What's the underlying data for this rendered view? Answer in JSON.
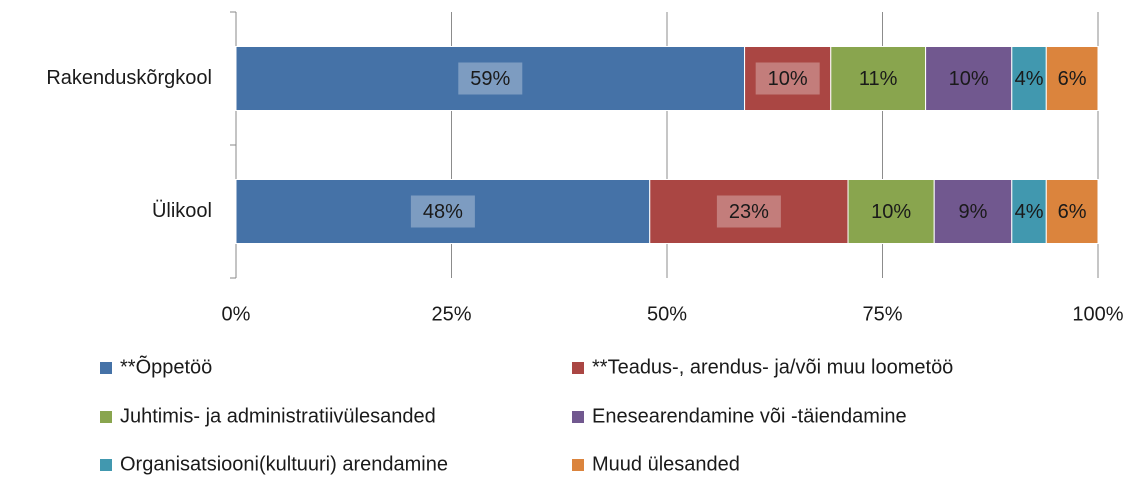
{
  "chart_data": {
    "type": "stacked-bar-horizontal",
    "categories": [
      "Rakenduskõrgkool",
      "Ülikool"
    ],
    "series": [
      {
        "name": "**Õppetöö",
        "color": "#4572a7",
        "values": [
          59,
          48
        ],
        "value_labels": [
          "59%",
          "48%"
        ]
      },
      {
        "name": "**Teadus-, arendus- ja/või muu loometöö",
        "color": "#aa4643",
        "values": [
          10,
          23
        ],
        "value_labels": [
          "10%",
          "23%"
        ]
      },
      {
        "name": "Juhtimis- ja administratiivülesanded",
        "color": "#89a54e",
        "values": [
          11,
          10
        ],
        "value_labels": [
          "11%",
          "10%"
        ]
      },
      {
        "name": "Enesearendamine või -täiendamine",
        "color": "#71588f",
        "values": [
          10,
          9
        ],
        "value_labels": [
          "10%",
          "9%"
        ]
      },
      {
        "name": "Organisatsiooni(kultuuri) arendamine",
        "color": "#4198af",
        "values": [
          4,
          4
        ],
        "value_labels": [
          "4%",
          "4%"
        ]
      },
      {
        "name": "Muud ülesanded",
        "color": "#db843d",
        "values": [
          6,
          6
        ],
        "value_labels": [
          "6%",
          "6%"
        ]
      }
    ],
    "xlim": [
      0,
      100
    ],
    "xticks": [
      {
        "value": 0,
        "label": "0%"
      },
      {
        "value": 25,
        "label": "25%"
      },
      {
        "value": 50,
        "label": "50%"
      },
      {
        "value": 75,
        "label": "75%"
      },
      {
        "value": 100,
        "label": "100%"
      }
    ],
    "grid": true,
    "legend": "bottom"
  }
}
